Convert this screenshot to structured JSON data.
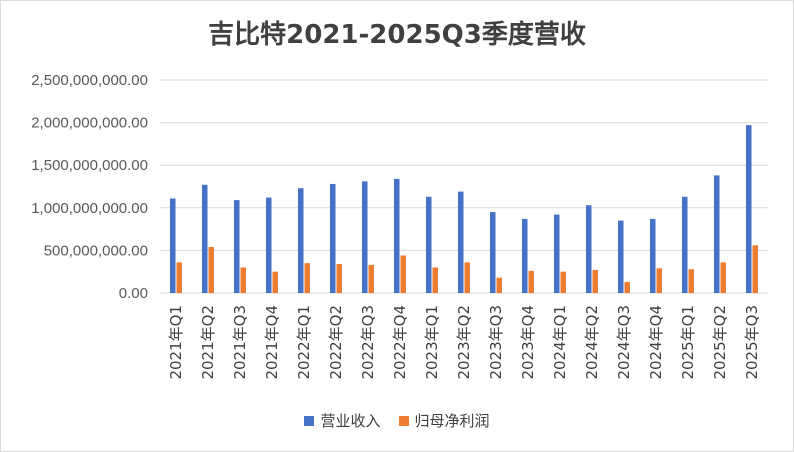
{
  "chart_data": {
    "type": "bar",
    "title": "吉比特2021-2025Q3季度营收",
    "categories": [
      "2021年Q1",
      "2021年Q2",
      "2021年Q3",
      "2021年Q4",
      "2022年Q1",
      "2022年Q2",
      "2022年Q3",
      "2022年Q4",
      "2023年Q1",
      "2023年Q2",
      "2023年Q3",
      "2023年Q4",
      "2024年Q1",
      "2024年Q2",
      "2024年Q3",
      "2024年Q4",
      "2025年Q1",
      "2025年Q2",
      "2025年Q3"
    ],
    "series": [
      {
        "name": "营业收入",
        "color": "#4472C4",
        "values": [
          1110000000,
          1270000000,
          1090000000,
          1120000000,
          1230000000,
          1280000000,
          1310000000,
          1340000000,
          1130000000,
          1190000000,
          950000000,
          870000000,
          920000000,
          1030000000,
          850000000,
          870000000,
          1130000000,
          1380000000,
          1970000000
        ]
      },
      {
        "name": "归母净利润",
        "color": "#ED7D31",
        "values": [
          360000000,
          540000000,
          300000000,
          250000000,
          350000000,
          340000000,
          330000000,
          440000000,
          300000000,
          360000000,
          180000000,
          260000000,
          250000000,
          270000000,
          130000000,
          290000000,
          280000000,
          360000000,
          560000000
        ]
      }
    ],
    "yticks": [
      "0.00",
      "500,000,000.00",
      "1,000,000,000.00",
      "1,500,000,000.00",
      "2,000,000,000.00",
      "2,500,000,000.00"
    ],
    "ylim": [
      0,
      2500000000
    ],
    "grid": true,
    "legend": "bottom"
  }
}
